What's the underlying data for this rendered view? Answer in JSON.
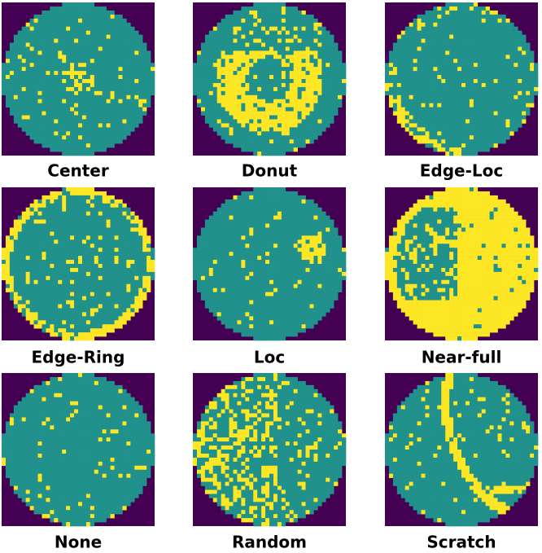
{
  "panels": [
    {
      "label": "Center"
    },
    {
      "label": "Donut"
    },
    {
      "label": "Edge-Loc"
    },
    {
      "label": "Edge-Ring"
    },
    {
      "label": "Loc"
    },
    {
      "label": "Near-full"
    },
    {
      "label": "None"
    },
    {
      "label": "Random"
    },
    {
      "label": "Scratch"
    }
  ]
}
